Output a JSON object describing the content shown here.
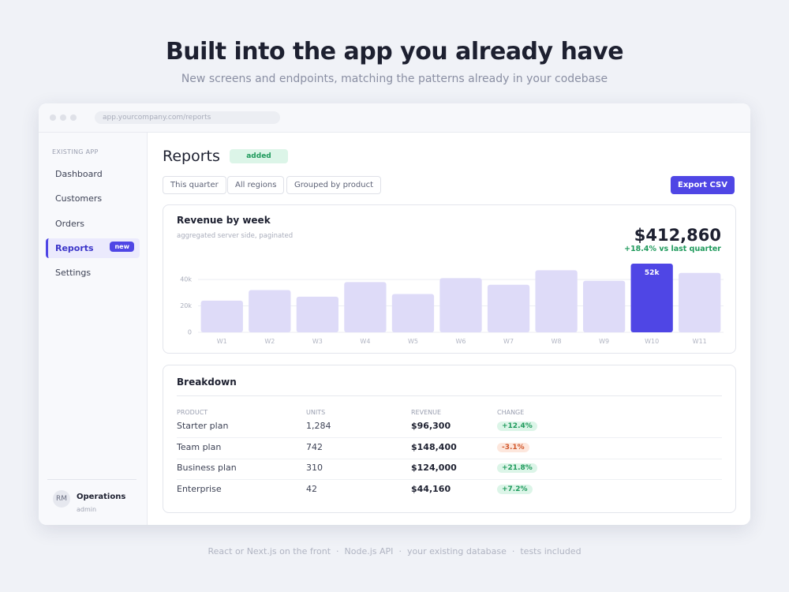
{
  "header": {
    "title": "Built into the app you already have",
    "subtitle": "New screens and endpoints, matching the patterns already in your codebase"
  },
  "browser": {
    "url": "app.yourcompany.com/reports"
  },
  "sidebar": {
    "section_label": "EXISTING APP",
    "items": [
      {
        "label": "Dashboard"
      },
      {
        "label": "Customers"
      },
      {
        "label": "Orders"
      },
      {
        "label": "Reports",
        "badge": "new",
        "active": true
      },
      {
        "label": "Settings"
      }
    ],
    "user": {
      "initials": "RM",
      "name": "Operations",
      "role": "admin"
    }
  },
  "reports": {
    "title": "Reports",
    "status_badge": "added",
    "filters": [
      "This quarter",
      "All regions",
      "Grouped by product"
    ],
    "export_button": "Export CSV"
  },
  "chart_data": {
    "type": "bar",
    "title": "Revenue by week",
    "subtitle": "aggregated server side, paginated",
    "total": "$412,860",
    "total_change": "+18.4% vs last quarter",
    "categories": [
      "W1",
      "W2",
      "W3",
      "W4",
      "W5",
      "W6",
      "W7",
      "W8",
      "W9",
      "W10",
      "W11"
    ],
    "values": [
      24,
      32,
      27,
      38,
      29,
      41,
      36,
      47,
      39,
      52,
      45
    ],
    "value_labels": [
      null,
      null,
      null,
      null,
      null,
      null,
      null,
      null,
      null,
      "52k",
      null
    ],
    "colors": [
      "#dedbf8",
      "#dedbf8",
      "#dedbf8",
      "#dedbf8",
      "#dedbf8",
      "#dedbf8",
      "#dedbf8",
      "#dedbf8",
      "#dedbf8",
      "#4f46e5",
      "#dedbf8"
    ],
    "ylim": [
      0,
      52
    ],
    "yticks": [
      0,
      {
        "value": 20,
        "label": "20k"
      },
      {
        "value": 40,
        "label": "40k"
      }
    ],
    "grid": true
  },
  "breakdown": {
    "title": "Breakdown",
    "columns": [
      "PRODUCT",
      "UNITS",
      "REVENUE",
      "CHANGE"
    ],
    "rows": [
      [
        "Starter plan",
        "1,284",
        "$96,300",
        "+12.4%"
      ],
      [
        "Team plan",
        "742",
        "$148,400",
        "-3.1%"
      ],
      [
        "Business plan",
        "310",
        "$124,000",
        "+21.8%"
      ],
      [
        "Enterprise",
        "42",
        "$44,160",
        "+7.2%"
      ]
    ]
  },
  "footer": [
    "React or Next.js on the front",
    "Node.js API",
    "your existing database",
    "tests included"
  ]
}
